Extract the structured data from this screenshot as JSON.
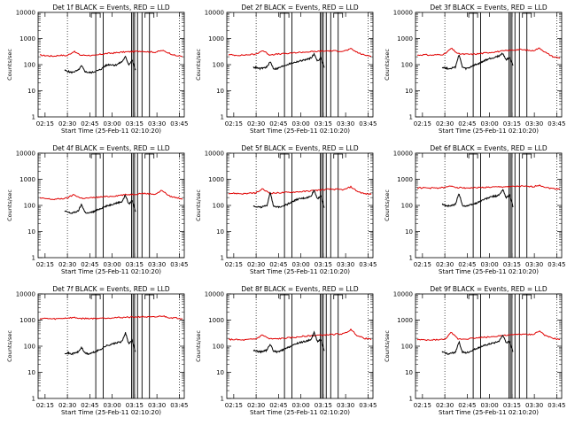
{
  "chart_data": {
    "type": "line",
    "grid_layout": "3x3",
    "x_tick_labels": [
      "02:15",
      "02:30",
      "02:45",
      "03:00",
      "03:15",
      "03:30",
      "03:45"
    ],
    "x_range_minutes_after_start": [
      0,
      98
    ],
    "xlabel": "Start Time (25-Feb-11 02:10:20)",
    "ylabel": "Counts/sec",
    "y_scale": "log",
    "y_range": [
      1,
      10000
    ],
    "y_tick_labels": [
      "1",
      "10",
      "100",
      "1000",
      "10000"
    ],
    "series_colors": {
      "events": "#000000",
      "lld": "#e00000"
    },
    "dotted_times": [
      "02:30",
      "03:45"
    ],
    "marker_times": [
      "02:49",
      "02:54",
      "03:13",
      "03:14",
      "03:15",
      "03:17",
      "03:20",
      "03:25"
    ],
    "marker_flag_times": [
      "02:49",
      "03:25"
    ],
    "panels": [
      {
        "title": "Det 1f BLACK = Events, RED = LLD",
        "events": [
          60,
          55,
          50,
          55,
          60,
          90,
          55,
          50,
          50,
          55,
          60,
          70,
          90,
          100,
          100,
          95,
          110,
          130,
          200,
          100,
          150,
          60
        ],
        "lld": [
          230,
          220,
          210,
          230,
          220,
          320,
          230,
          230,
          220,
          250,
          270,
          280,
          300,
          310,
          320,
          330,
          310,
          300,
          350,
          280,
          220,
          210
        ]
      },
      {
        "title": "Det 2f BLACK = Events, RED = LLD",
        "events": [
          80,
          75,
          70,
          75,
          80,
          130,
          70,
          70,
          80,
          90,
          100,
          110,
          120,
          130,
          140,
          150,
          160,
          180,
          250,
          140,
          180,
          80
        ],
        "lld": [
          240,
          230,
          230,
          240,
          250,
          350,
          240,
          250,
          260,
          270,
          290,
          300,
          310,
          320,
          330,
          340,
          330,
          330,
          400,
          290,
          230,
          220
        ]
      },
      {
        "title": "Det 3f BLACK = Events, RED = LLD",
        "events": [
          80,
          75,
          70,
          75,
          80,
          250,
          80,
          70,
          75,
          90,
          100,
          110,
          130,
          150,
          170,
          180,
          200,
          220,
          270,
          150,
          200,
          90
        ],
        "lld": [
          230,
          240,
          230,
          240,
          250,
          420,
          260,
          250,
          250,
          260,
          280,
          300,
          320,
          340,
          360,
          380,
          360,
          340,
          430,
          280,
          200,
          180
        ]
      },
      {
        "title": "Det 4f BLACK = Events, RED = LLD",
        "events": [
          60,
          55,
          50,
          55,
          60,
          110,
          55,
          50,
          55,
          60,
          70,
          80,
          90,
          100,
          110,
          120,
          130,
          140,
          250,
          110,
          160,
          60
        ],
        "lld": [
          190,
          180,
          170,
          180,
          190,
          260,
          190,
          190,
          200,
          210,
          220,
          230,
          250,
          260,
          270,
          290,
          280,
          270,
          380,
          230,
          200,
          180
        ]
      },
      {
        "title": "Det 5f BLACK = Events, RED = LLD",
        "events": [
          95,
          90,
          85,
          90,
          95,
          330,
          90,
          85,
          90,
          100,
          110,
          130,
          150,
          170,
          180,
          190,
          200,
          220,
          380,
          180,
          240,
          80
        ],
        "lld": [
          290,
          290,
          280,
          290,
          300,
          420,
          300,
          300,
          310,
          320,
          330,
          340,
          360,
          380,
          400,
          420,
          410,
          400,
          520,
          340,
          280,
          270
        ]
      },
      {
        "title": "Det 6f BLACK = Events, RED = LLD",
        "events": [
          110,
          100,
          95,
          100,
          110,
          300,
          100,
          95,
          100,
          110,
          120,
          140,
          160,
          180,
          200,
          220,
          230,
          250,
          400,
          200,
          260,
          90
        ],
        "lld": [
          470,
          470,
          460,
          470,
          480,
          560,
          480,
          470,
          470,
          480,
          490,
          500,
          510,
          520,
          530,
          540,
          530,
          520,
          600,
          480,
          440,
          430
        ]
      },
      {
        "title": "Det 7f BLACK = Events, RED = LLD",
        "events": [
          55,
          55,
          50,
          55,
          60,
          90,
          55,
          50,
          55,
          60,
          70,
          80,
          100,
          110,
          120,
          130,
          140,
          150,
          330,
          120,
          170,
          60
        ],
        "lld": [
          1150,
          1150,
          1100,
          1150,
          1200,
          1250,
          1150,
          1150,
          1150,
          1200,
          1200,
          1250,
          1250,
          1300,
          1300,
          1350,
          1300,
          1300,
          1450,
          1250,
          1200,
          1150
        ]
      },
      {
        "title": "Det 8f BLACK = Events, RED = LLD",
        "events": [
          70,
          65,
          60,
          65,
          70,
          120,
          65,
          60,
          65,
          75,
          85,
          100,
          110,
          130,
          140,
          150,
          160,
          180,
          330,
          150,
          180,
          70
        ],
        "lld": [
          180,
          180,
          170,
          180,
          190,
          270,
          190,
          190,
          200,
          210,
          220,
          240,
          250,
          260,
          270,
          280,
          290,
          300,
          430,
          250,
          200,
          180
        ]
      },
      {
        "title": "Det 9f BLACK = Events, RED = LLD",
        "events": [
          60,
          55,
          50,
          55,
          60,
          150,
          60,
          55,
          60,
          70,
          80,
          90,
          100,
          110,
          120,
          130,
          140,
          160,
          270,
          130,
          160,
          60
        ],
        "lld": [
          180,
          170,
          170,
          180,
          180,
          330,
          190,
          190,
          200,
          210,
          220,
          230,
          250,
          260,
          270,
          290,
          280,
          280,
          380,
          240,
          200,
          180
        ]
      }
    ]
  }
}
